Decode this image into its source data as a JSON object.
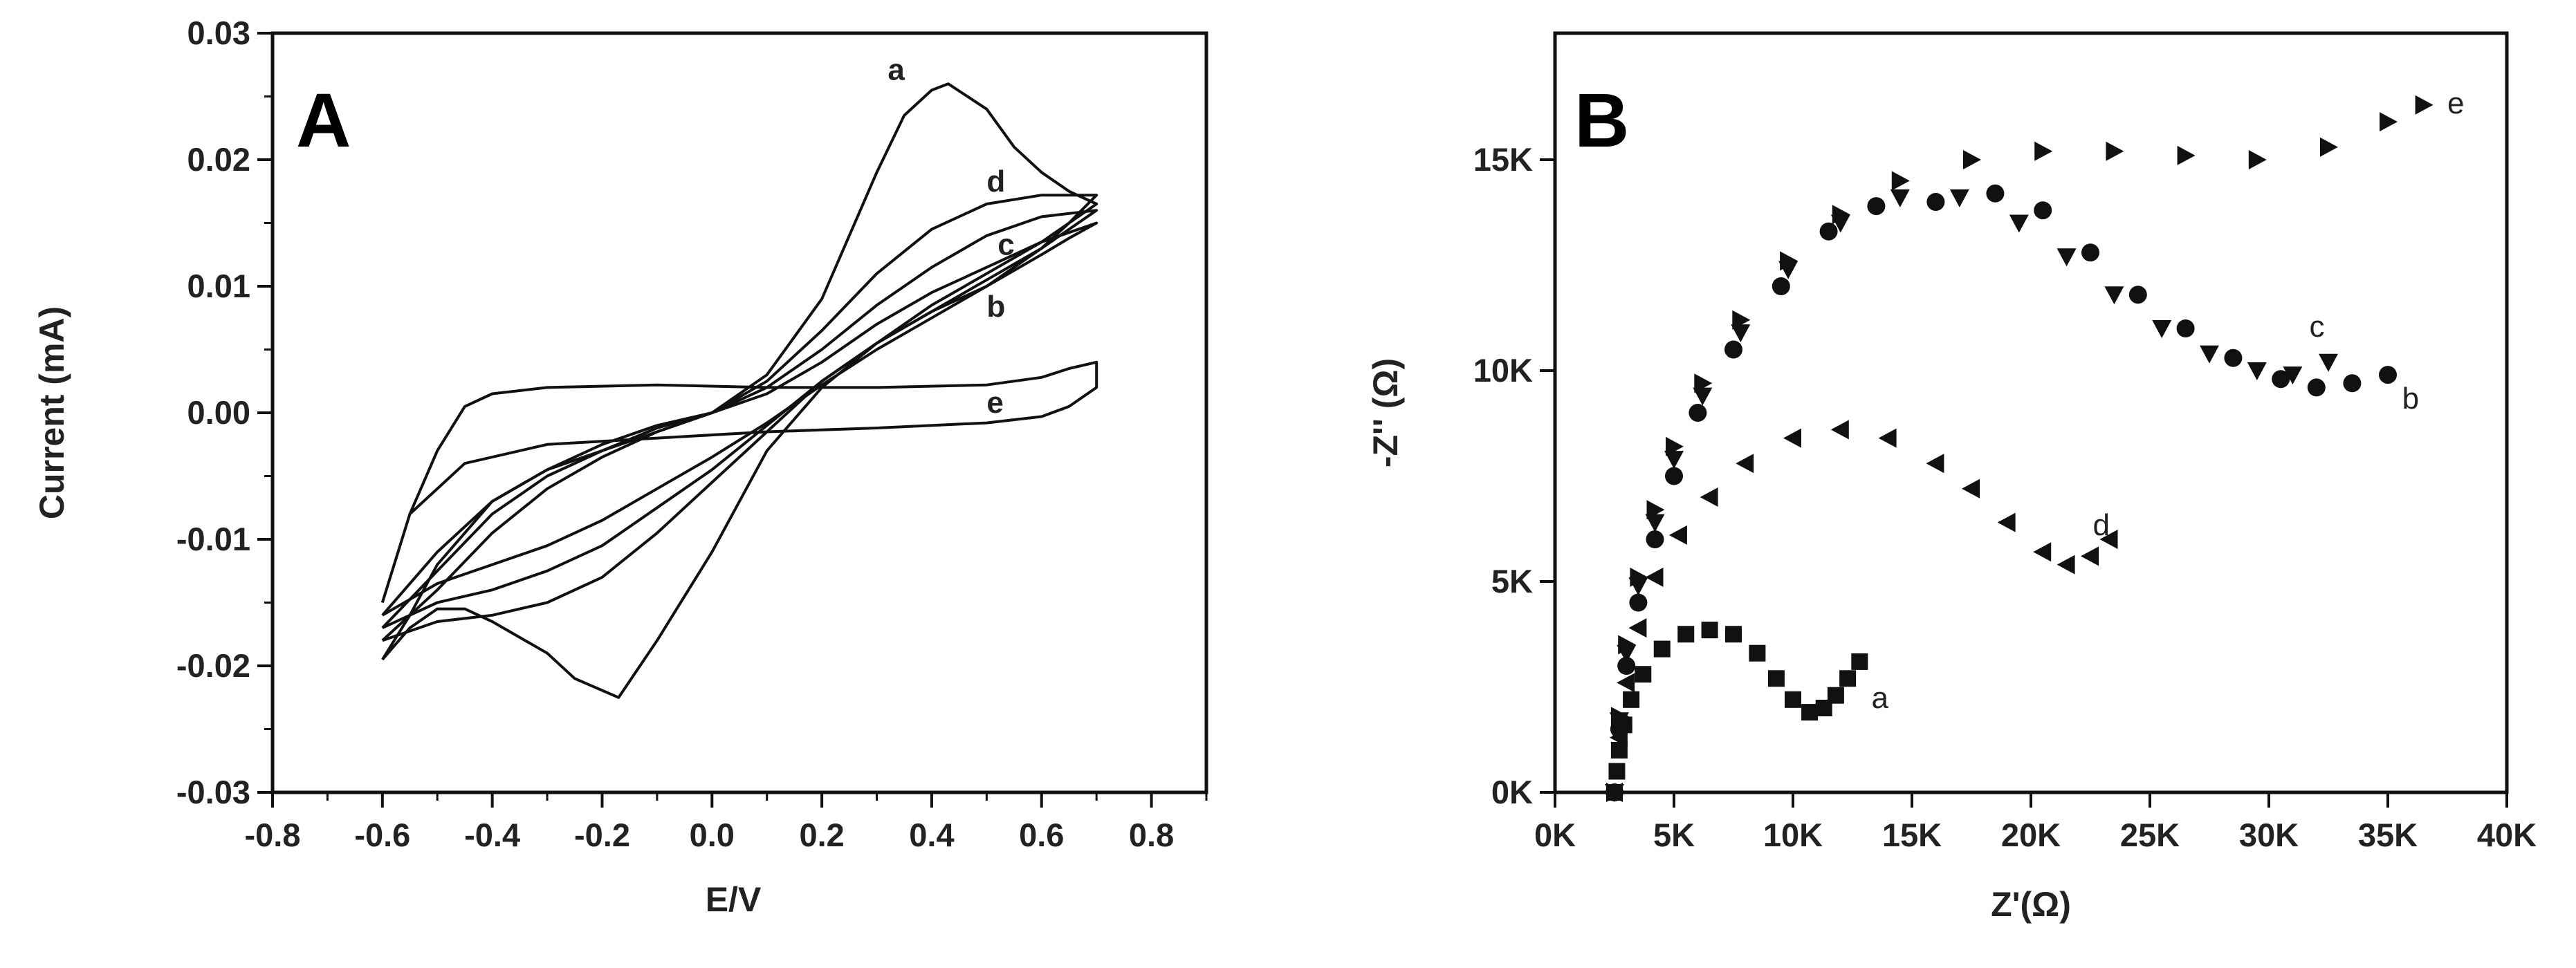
{
  "chart_data": [
    {
      "type": "line",
      "panel_label": "A",
      "xlabel": "E/V",
      "ylabel": "Current (mA)",
      "xlim": [
        -0.8,
        0.9
      ],
      "ylim": [
        -0.03,
        0.03
      ],
      "x_ticks": [
        "-0.8",
        "-0.6",
        "-0.4",
        "-0.2",
        "0.0",
        "0.2",
        "0.4",
        "0.6",
        "0.8"
      ],
      "y_ticks": [
        "0.03",
        "0.02",
        "0.01",
        "0.00",
        "-0.01",
        "-0.02",
        "-0.03"
      ],
      "series": [
        {
          "name": "a",
          "points": [
            [
              -0.6,
              -0.0195
            ],
            [
              -0.55,
              -0.016
            ],
            [
              -0.5,
              -0.012
            ],
            [
              -0.4,
              -0.007
            ],
            [
              -0.3,
              -0.0045
            ],
            [
              -0.2,
              -0.003
            ],
            [
              -0.1,
              -0.0015
            ],
            [
              0.0,
              0.0
            ],
            [
              0.1,
              0.003
            ],
            [
              0.2,
              0.009
            ],
            [
              0.3,
              0.019
            ],
            [
              0.35,
              0.0235
            ],
            [
              0.4,
              0.0255
            ],
            [
              0.43,
              0.026
            ],
            [
              0.5,
              0.024
            ],
            [
              0.55,
              0.021
            ],
            [
              0.6,
              0.019
            ],
            [
              0.65,
              0.0175
            ],
            [
              0.7,
              0.0165
            ],
            [
              0.65,
              0.015
            ],
            [
              0.6,
              0.013
            ],
            [
              0.5,
              0.01
            ],
            [
              0.4,
              0.008
            ],
            [
              0.3,
              0.0055
            ],
            [
              0.2,
              0.002
            ],
            [
              0.1,
              -0.003
            ],
            [
              0.0,
              -0.011
            ],
            [
              -0.1,
              -0.018
            ],
            [
              -0.17,
              -0.0225
            ],
            [
              -0.25,
              -0.021
            ],
            [
              -0.3,
              -0.019
            ],
            [
              -0.4,
              -0.0165
            ],
            [
              -0.45,
              -0.0155
            ],
            [
              -0.5,
              -0.0155
            ],
            [
              -0.55,
              -0.017
            ],
            [
              -0.6,
              -0.0195
            ]
          ]
        },
        {
          "name": "d",
          "points": [
            [
              -0.6,
              -0.018
            ],
            [
              -0.5,
              -0.014
            ],
            [
              -0.4,
              -0.0095
            ],
            [
              -0.3,
              -0.006
            ],
            [
              -0.2,
              -0.0035
            ],
            [
              -0.1,
              -0.0015
            ],
            [
              0.0,
              0.0
            ],
            [
              0.1,
              0.0025
            ],
            [
              0.2,
              0.0065
            ],
            [
              0.3,
              0.011
            ],
            [
              0.4,
              0.0145
            ],
            [
              0.5,
              0.0165
            ],
            [
              0.6,
              0.0172
            ],
            [
              0.7,
              0.0172
            ],
            [
              0.65,
              0.015
            ],
            [
              0.6,
              0.0135
            ],
            [
              0.5,
              0.011
            ],
            [
              0.4,
              0.0085
            ],
            [
              0.3,
              0.0055
            ],
            [
              0.2,
              0.0025
            ],
            [
              0.1,
              -0.0015
            ],
            [
              0.0,
              -0.0055
            ],
            [
              -0.1,
              -0.0095
            ],
            [
              -0.2,
              -0.013
            ],
            [
              -0.3,
              -0.015
            ],
            [
              -0.4,
              -0.016
            ],
            [
              -0.5,
              -0.0165
            ],
            [
              -0.6,
              -0.018
            ]
          ]
        },
        {
          "name": "c",
          "points": [
            [
              -0.6,
              -0.017
            ],
            [
              -0.5,
              -0.0125
            ],
            [
              -0.4,
              -0.008
            ],
            [
              -0.3,
              -0.005
            ],
            [
              -0.2,
              -0.003
            ],
            [
              -0.1,
              -0.0012
            ],
            [
              0.0,
              0.0
            ],
            [
              0.1,
              0.002
            ],
            [
              0.2,
              0.005
            ],
            [
              0.3,
              0.0085
            ],
            [
              0.4,
              0.0115
            ],
            [
              0.5,
              0.014
            ],
            [
              0.6,
              0.0155
            ],
            [
              0.7,
              0.016
            ],
            [
              0.65,
              0.0145
            ],
            [
              0.6,
              0.013
            ],
            [
              0.5,
              0.0105
            ],
            [
              0.4,
              0.008
            ],
            [
              0.3,
              0.0055
            ],
            [
              0.2,
              0.0025
            ],
            [
              0.1,
              -0.001
            ],
            [
              0.0,
              -0.0045
            ],
            [
              -0.1,
              -0.0075
            ],
            [
              -0.2,
              -0.0105
            ],
            [
              -0.3,
              -0.0125
            ],
            [
              -0.4,
              -0.014
            ],
            [
              -0.5,
              -0.015
            ],
            [
              -0.6,
              -0.017
            ]
          ]
        },
        {
          "name": "b",
          "points": [
            [
              -0.6,
              -0.016
            ],
            [
              -0.5,
              -0.011
            ],
            [
              -0.4,
              -0.007
            ],
            [
              -0.3,
              -0.0045
            ],
            [
              -0.2,
              -0.0025
            ],
            [
              -0.1,
              -0.001
            ],
            [
              0.0,
              0.0
            ],
            [
              0.1,
              0.0015
            ],
            [
              0.2,
              0.004
            ],
            [
              0.3,
              0.007
            ],
            [
              0.4,
              0.0095
            ],
            [
              0.5,
              0.0115
            ],
            [
              0.6,
              0.0135
            ],
            [
              0.7,
              0.015
            ],
            [
              0.65,
              0.0138
            ],
            [
              0.6,
              0.0125
            ],
            [
              0.5,
              0.01
            ],
            [
              0.4,
              0.0075
            ],
            [
              0.3,
              0.005
            ],
            [
              0.2,
              0.0022
            ],
            [
              0.1,
              -0.0008
            ],
            [
              0.0,
              -0.0035
            ],
            [
              -0.1,
              -0.006
            ],
            [
              -0.2,
              -0.0085
            ],
            [
              -0.3,
              -0.0105
            ],
            [
              -0.4,
              -0.012
            ],
            [
              -0.5,
              -0.0135
            ],
            [
              -0.6,
              -0.016
            ]
          ]
        },
        {
          "name": "e",
          "points": [
            [
              -0.6,
              -0.015
            ],
            [
              -0.55,
              -0.008
            ],
            [
              -0.5,
              -0.003
            ],
            [
              -0.45,
              0.0005
            ],
            [
              -0.4,
              0.0015
            ],
            [
              -0.3,
              0.002
            ],
            [
              -0.1,
              0.0022
            ],
            [
              0.1,
              0.002
            ],
            [
              0.3,
              0.002
            ],
            [
              0.5,
              0.0022
            ],
            [
              0.6,
              0.0028
            ],
            [
              0.65,
              0.0035
            ],
            [
              0.7,
              0.004
            ],
            [
              0.7,
              0.002
            ],
            [
              0.65,
              0.0005
            ],
            [
              0.6,
              -0.0003
            ],
            [
              0.5,
              -0.0008
            ],
            [
              0.3,
              -0.0012
            ],
            [
              0.1,
              -0.0015
            ],
            [
              -0.1,
              -0.002
            ],
            [
              -0.3,
              -0.0025
            ],
            [
              -0.45,
              -0.004
            ],
            [
              -0.55,
              -0.008
            ],
            [
              -0.6,
              -0.015
            ]
          ]
        }
      ],
      "curve_labels": [
        {
          "text": "a",
          "x": 0.32,
          "y": 0.0263
        },
        {
          "text": "d",
          "x": 0.5,
          "y": 0.0175
        },
        {
          "text": "c",
          "x": 0.52,
          "y": 0.0125
        },
        {
          "text": "b",
          "x": 0.5,
          "y": 0.0076
        },
        {
          "text": "e",
          "x": 0.5,
          "y": 0.0
        }
      ]
    },
    {
      "type": "scatter",
      "panel_label": "B",
      "xlabel": "Z'(Ω)",
      "ylabel": "-Z'' (Ω)",
      "xlim": [
        0,
        40000
      ],
      "ylim": [
        0,
        18000
      ],
      "x_ticks": [
        "0K",
        "5K",
        "10K",
        "15K",
        "20K",
        "25K",
        "30K",
        "35K",
        "40K"
      ],
      "y_ticks": [
        "0K",
        "5K",
        "10K",
        "15K"
      ],
      "series": [
        {
          "name": "a",
          "marker": "square",
          "points": [
            [
              2500,
              0
            ],
            [
              2600,
              500
            ],
            [
              2700,
              1000
            ],
            [
              2900,
              1600
            ],
            [
              3200,
              2200
            ],
            [
              3700,
              2800
            ],
            [
              4500,
              3400
            ],
            [
              5500,
              3750
            ],
            [
              6500,
              3850
            ],
            [
              7500,
              3750
            ],
            [
              8500,
              3300
            ],
            [
              9300,
              2700
            ],
            [
              10000,
              2200
            ],
            [
              10700,
              1900
            ],
            [
              11300,
              2000
            ],
            [
              11800,
              2300
            ],
            [
              12300,
              2700
            ],
            [
              12800,
              3100
            ]
          ]
        },
        {
          "name": "b",
          "marker": "circle",
          "points": [
            [
              2500,
              0
            ],
            [
              2700,
              1500
            ],
            [
              3000,
              3000
            ],
            [
              3500,
              4500
            ],
            [
              4200,
              6000
            ],
            [
              5000,
              7500
            ],
            [
              6000,
              9000
            ],
            [
              7500,
              10500
            ],
            [
              9500,
              12000
            ],
            [
              11500,
              13300
            ],
            [
              13500,
              13900
            ],
            [
              16000,
              14000
            ],
            [
              18500,
              14200
            ],
            [
              20500,
              13800
            ],
            [
              22500,
              12800
            ],
            [
              24500,
              11800
            ],
            [
              26500,
              11000
            ],
            [
              28500,
              10300
            ],
            [
              30500,
              9800
            ],
            [
              32000,
              9600
            ],
            [
              33500,
              9700
            ],
            [
              35000,
              9900
            ]
          ]
        },
        {
          "name": "c",
          "marker": "triangle-down",
          "points": [
            [
              2500,
              0
            ],
            [
              2700,
              1700
            ],
            [
              3000,
              3300
            ],
            [
              3500,
              4900
            ],
            [
              4200,
              6400
            ],
            [
              5000,
              7900
            ],
            [
              6200,
              9400
            ],
            [
              7800,
              10900
            ],
            [
              9800,
              12400
            ],
            [
              12000,
              13500
            ],
            [
              14500,
              14100
            ],
            [
              17000,
              14100
            ],
            [
              19500,
              13500
            ],
            [
              21500,
              12700
            ],
            [
              23500,
              11800
            ],
            [
              25500,
              11000
            ],
            [
              27500,
              10400
            ],
            [
              29500,
              10000
            ],
            [
              31000,
              9900
            ],
            [
              32500,
              10200
            ]
          ]
        },
        {
          "name": "d",
          "marker": "triangle-left",
          "points": [
            [
              2500,
              0
            ],
            [
              2700,
              1300
            ],
            [
              3000,
              2600
            ],
            [
              3500,
              3900
            ],
            [
              4200,
              5100
            ],
            [
              5200,
              6100
            ],
            [
              6500,
              7000
            ],
            [
              8000,
              7800
            ],
            [
              10000,
              8400
            ],
            [
              12000,
              8600
            ],
            [
              14000,
              8400
            ],
            [
              16000,
              7800
            ],
            [
              17500,
              7200
            ],
            [
              19000,
              6400
            ],
            [
              20500,
              5700
            ],
            [
              21500,
              5400
            ],
            [
              22500,
              5600
            ],
            [
              23300,
              6000
            ]
          ]
        },
        {
          "name": "e",
          "marker": "triangle-right",
          "points": [
            [
              2500,
              0
            ],
            [
              2700,
              1800
            ],
            [
              3000,
              3500
            ],
            [
              3500,
              5100
            ],
            [
              4200,
              6700
            ],
            [
              5000,
              8200
            ],
            [
              6200,
              9700
            ],
            [
              7800,
              11200
            ],
            [
              9800,
              12600
            ],
            [
              12000,
              13700
            ],
            [
              14500,
              14500
            ],
            [
              17500,
              15000
            ],
            [
              20500,
              15200
            ],
            [
              23500,
              15200
            ],
            [
              26500,
              15100
            ],
            [
              29500,
              15000
            ],
            [
              32500,
              15300
            ],
            [
              35000,
              15900
            ],
            [
              36500,
              16300
            ]
          ]
        }
      ],
      "curve_labels": [
        {
          "text": "e",
          "x": 37500,
          "y": 16100
        },
        {
          "text": "c",
          "x": 31700,
          "y": 10800
        },
        {
          "text": "b",
          "x": 35600,
          "y": 9100
        },
        {
          "text": "d",
          "x": 22600,
          "y": 6100
        },
        {
          "text": "a",
          "x": 13300,
          "y": 2000
        }
      ]
    }
  ]
}
